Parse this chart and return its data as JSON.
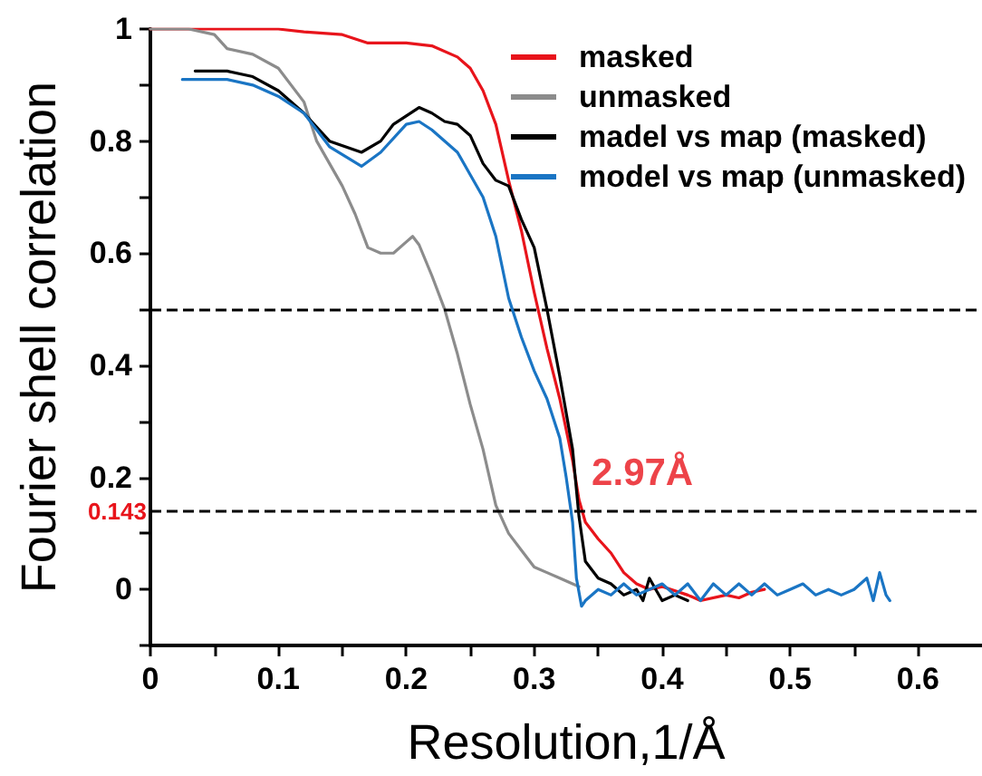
{
  "chart_data": {
    "type": "line",
    "xlabel": "Resolution,1/Å",
    "ylabel": "Fourier shell correlation",
    "xlim": [
      0,
      0.65
    ],
    "ylim": [
      -0.1,
      1
    ],
    "xticks": [
      0,
      {
        "value": 0.05,
        "label": null
      },
      0.1,
      {
        "value": 0.15,
        "label": null
      },
      0.2,
      {
        "value": 0.25,
        "label": null
      },
      0.3,
      {
        "value": 0.35,
        "label": null
      },
      0.4,
      {
        "value": 0.45,
        "label": null
      },
      0.5,
      {
        "value": 0.55,
        "label": null
      },
      0.6
    ],
    "yticks": [
      {
        "value": -0.1,
        "label": null
      },
      0,
      {
        "value": 0.1,
        "label": null
      },
      0.2,
      {
        "value": 0.3,
        "label": null
      },
      0.4,
      {
        "value": 0.5,
        "label": null
      },
      0.6,
      {
        "value": 0.7,
        "label": null
      },
      0.8,
      {
        "value": 0.9,
        "label": null
      },
      1
    ],
    "grid": false,
    "legend": "top right",
    "marker": "none",
    "line_style": "solid",
    "ref_lines": [
      {
        "axis": "y",
        "value": 0.5,
        "label": null,
        "color": "#000000",
        "line_style": "dashed"
      },
      {
        "axis": "y",
        "value": 0.143,
        "label": "0.143",
        "color": "#000000",
        "line_style": "dashed"
      }
    ],
    "annotations": [
      {
        "text": "2.97Å",
        "x": 0.335,
        "y": 0.143
      }
    ],
    "series": [
      {
        "name": "masked",
        "color": "#e8141b",
        "x": [
          0,
          0.05,
          0.1,
          0.12,
          0.15,
          0.17,
          0.2,
          0.22,
          0.24,
          0.25,
          0.26,
          0.27,
          0.28,
          0.29,
          0.3,
          0.31,
          0.32,
          0.33,
          0.335,
          0.34,
          0.35,
          0.36,
          0.37,
          0.38,
          0.39,
          0.4,
          0.42,
          0.43,
          0.45,
          0.46,
          0.47,
          0.48
        ],
        "values": [
          1,
          1,
          1,
          0.995,
          0.99,
          0.975,
          0.975,
          0.97,
          0.95,
          0.93,
          0.89,
          0.83,
          0.73,
          0.64,
          0.53,
          0.43,
          0.34,
          0.23,
          0.16,
          0.12,
          0.09,
          0.065,
          0.03,
          0.01,
          0,
          0.005,
          -0.01,
          -0.02,
          -0.01,
          -0.015,
          -0.005,
          0
        ]
      },
      {
        "name": "unmasked",
        "color": "#8c8c8c",
        "x": [
          0,
          0.03,
          0.05,
          0.06,
          0.08,
          0.1,
          0.12,
          0.13,
          0.14,
          0.15,
          0.16,
          0.17,
          0.18,
          0.19,
          0.2,
          0.205,
          0.21,
          0.22,
          0.23,
          0.24,
          0.25,
          0.26,
          0.27,
          0.28,
          0.29,
          0.3,
          0.31,
          0.32,
          0.33,
          0.335
        ],
        "values": [
          1,
          1,
          0.99,
          0.965,
          0.955,
          0.93,
          0.87,
          0.8,
          0.76,
          0.72,
          0.67,
          0.61,
          0.6,
          0.6,
          0.62,
          0.63,
          0.615,
          0.56,
          0.5,
          0.42,
          0.33,
          0.25,
          0.15,
          0.1,
          0.07,
          0.04,
          0.03,
          0.02,
          0.01,
          0.005
        ]
      },
      {
        "name": "madel vs map (masked)",
        "color": "#000000",
        "x": [
          0.035,
          0.06,
          0.08,
          0.1,
          0.12,
          0.14,
          0.165,
          0.18,
          0.19,
          0.21,
          0.22,
          0.23,
          0.24,
          0.25,
          0.26,
          0.27,
          0.28,
          0.29,
          0.3,
          0.31,
          0.32,
          0.33,
          0.335,
          0.34,
          0.35,
          0.36,
          0.37,
          0.38,
          0.385,
          0.39,
          0.395,
          0.4,
          0.41,
          0.42
        ],
        "values": [
          0.925,
          0.925,
          0.915,
          0.89,
          0.85,
          0.8,
          0.78,
          0.8,
          0.83,
          0.86,
          0.85,
          0.835,
          0.83,
          0.81,
          0.76,
          0.73,
          0.72,
          0.66,
          0.61,
          0.5,
          0.38,
          0.25,
          0.13,
          0.05,
          0.02,
          0.01,
          -0.01,
          0,
          -0.02,
          0.02,
          0,
          -0.02,
          -0.01,
          -0.02
        ]
      },
      {
        "name": "model vs map (unmasked)",
        "color": "#1a75c4",
        "x": [
          0.025,
          0.06,
          0.08,
          0.1,
          0.12,
          0.14,
          0.165,
          0.18,
          0.2,
          0.21,
          0.22,
          0.24,
          0.25,
          0.26,
          0.27,
          0.28,
          0.29,
          0.3,
          0.31,
          0.32,
          0.325,
          0.33,
          0.333,
          0.337,
          0.34,
          0.35,
          0.36,
          0.37,
          0.38,
          0.39,
          0.4,
          0.41,
          0.42,
          0.43,
          0.44,
          0.45,
          0.46,
          0.47,
          0.48,
          0.49,
          0.5,
          0.51,
          0.52,
          0.53,
          0.54,
          0.55,
          0.56,
          0.565,
          0.57,
          0.575,
          0.578
        ],
        "values": [
          0.91,
          0.91,
          0.9,
          0.88,
          0.85,
          0.79,
          0.755,
          0.78,
          0.83,
          0.835,
          0.82,
          0.78,
          0.74,
          0.7,
          0.63,
          0.52,
          0.45,
          0.39,
          0.34,
          0.27,
          0.2,
          0.12,
          0.02,
          -0.03,
          -0.02,
          0,
          -0.01,
          0.01,
          -0.01,
          0,
          0.01,
          -0.01,
          0.01,
          -0.02,
          0.01,
          -0.01,
          0.01,
          -0.01,
          0.01,
          -0.01,
          0,
          0.01,
          -0.01,
          0,
          -0.01,
          0,
          0.02,
          -0.02,
          0.03,
          -0.01,
          -0.02
        ]
      }
    ]
  }
}
